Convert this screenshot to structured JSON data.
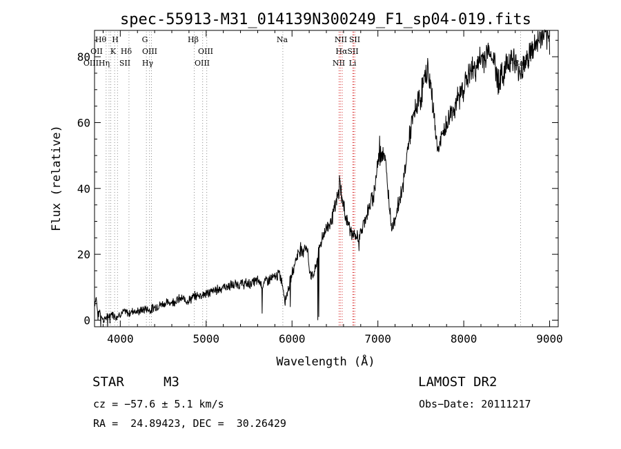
{
  "chart_data": {
    "type": "line",
    "title": "spec-55913-M31_014139N300249_F1_sp04-019.fits",
    "xlabel": "Wavelength (Å)",
    "ylabel": "Flux (relative)",
    "xlim": [
      3700,
      9100
    ],
    "ylim": [
      -2,
      88
    ],
    "xticks": [
      {
        "value": 4000,
        "label": "4000"
      },
      {
        "value": 5000,
        "label": "5000"
      },
      {
        "value": 6000,
        "label": "6000"
      },
      {
        "value": 7000,
        "label": "7000"
      },
      {
        "value": 8000,
        "label": "8000"
      },
      {
        "value": 9000,
        "label": "9000"
      }
    ],
    "yticks": [
      {
        "value": 0,
        "label": "0"
      },
      {
        "value": 20,
        "label": "20"
      },
      {
        "value": 40,
        "label": "40"
      },
      {
        "value": 60,
        "label": "60"
      },
      {
        "value": 80,
        "label": "80"
      }
    ],
    "spectrum_knots": [
      [
        3700,
        5
      ],
      [
        3720,
        7
      ],
      [
        3740,
        1
      ],
      [
        3760,
        3
      ],
      [
        3800,
        0
      ],
      [
        3850,
        1
      ],
      [
        3900,
        2
      ],
      [
        3950,
        1
      ],
      [
        4000,
        2
      ],
      [
        4050,
        2.5
      ],
      [
        4100,
        2
      ],
      [
        4150,
        3
      ],
      [
        4200,
        2.5
      ],
      [
        4250,
        3
      ],
      [
        4300,
        3.5
      ],
      [
        4350,
        3
      ],
      [
        4400,
        4
      ],
      [
        4500,
        5
      ],
      [
        4600,
        5.5
      ],
      [
        4700,
        6.5
      ],
      [
        4800,
        6
      ],
      [
        4850,
        7
      ],
      [
        4900,
        7.5
      ],
      [
        5000,
        8
      ],
      [
        5100,
        9
      ],
      [
        5200,
        10
      ],
      [
        5300,
        10.5
      ],
      [
        5400,
        11
      ],
      [
        5500,
        11
      ],
      [
        5600,
        12
      ],
      [
        5650,
        11
      ],
      [
        5700,
        12
      ],
      [
        5800,
        13
      ],
      [
        5850,
        14
      ],
      [
        5880,
        12
      ],
      [
        5920,
        6
      ],
      [
        5960,
        10
      ],
      [
        6000,
        14
      ],
      [
        6050,
        19
      ],
      [
        6100,
        22
      ],
      [
        6120,
        20
      ],
      [
        6150,
        23
      ],
      [
        6180,
        21
      ],
      [
        6200,
        16
      ],
      [
        6230,
        13
      ],
      [
        6270,
        15
      ],
      [
        6300,
        20
      ],
      [
        6350,
        25
      ],
      [
        6400,
        28
      ],
      [
        6450,
        30
      ],
      [
        6500,
        34
      ],
      [
        6540,
        38
      ],
      [
        6560,
        42
      ],
      [
        6580,
        37
      ],
      [
        6620,
        32
      ],
      [
        6660,
        29
      ],
      [
        6700,
        26
      ],
      [
        6750,
        25
      ],
      [
        6800,
        26
      ],
      [
        6850,
        31
      ],
      [
        6900,
        34
      ],
      [
        6950,
        38
      ],
      [
        7000,
        48
      ],
      [
        7050,
        52
      ],
      [
        7080,
        50
      ],
      [
        7100,
        44
      ],
      [
        7150,
        31
      ],
      [
        7180,
        29
      ],
      [
        7220,
        33
      ],
      [
        7300,
        42
      ],
      [
        7350,
        53
      ],
      [
        7400,
        60
      ],
      [
        7450,
        65
      ],
      [
        7500,
        68
      ],
      [
        7550,
        74
      ],
      [
        7580,
        76
      ],
      [
        7620,
        70
      ],
      [
        7660,
        61
      ],
      [
        7690,
        52
      ],
      [
        7720,
        53
      ],
      [
        7760,
        57
      ],
      [
        7800,
        59
      ],
      [
        7850,
        63
      ],
      [
        7900,
        65
      ],
      [
        7950,
        68
      ],
      [
        8000,
        71
      ],
      [
        8050,
        74
      ],
      [
        8100,
        76
      ],
      [
        8150,
        77
      ],
      [
        8200,
        79
      ],
      [
        8250,
        80
      ],
      [
        8300,
        82
      ],
      [
        8350,
        79
      ],
      [
        8400,
        73
      ],
      [
        8450,
        74
      ],
      [
        8500,
        78
      ],
      [
        8550,
        80
      ],
      [
        8600,
        78
      ],
      [
        8650,
        75
      ],
      [
        8700,
        78
      ],
      [
        8750,
        80
      ],
      [
        8800,
        82
      ],
      [
        8850,
        84
      ],
      [
        8900,
        86
      ],
      [
        8950,
        86
      ],
      [
        9000,
        84
      ]
    ],
    "spectrum_noise": 1.6,
    "spectrum_spikes": [
      [
        3770,
        -2
      ],
      [
        3850,
        -2
      ],
      [
        3880,
        -1
      ],
      [
        5650,
        2
      ],
      [
        5980,
        4
      ],
      [
        6300,
        0
      ],
      [
        6310,
        1
      ],
      [
        6260,
        15
      ],
      [
        6550,
        44
      ],
      [
        6780,
        21
      ],
      [
        7020,
        56
      ],
      [
        7160,
        27
      ]
    ],
    "line_markers": [
      {
        "wavelength": 3835,
        "labels": [
          "Hθ"
        ]
      },
      {
        "wavelength": 3869,
        "labels": [
          "OII"
        ]
      },
      {
        "wavelength": 3889,
        "labels": [
          "OIII",
          "Hη"
        ]
      },
      {
        "wavelength": 3934,
        "labels": [
          "K"
        ]
      },
      {
        "wavelength": 3968,
        "labels": [
          "H"
        ]
      },
      {
        "wavelength": 4101,
        "labels": [
          "Hδ",
          "SII"
        ]
      },
      {
        "wavelength": 4304,
        "labels": [
          "G"
        ]
      },
      {
        "wavelength": 4340,
        "labels": [
          "Hγ"
        ]
      },
      {
        "wavelength": 4363,
        "labels": [
          "OIII"
        ]
      },
      {
        "wavelength": 4861,
        "labels": [
          "Hβ"
        ]
      },
      {
        "wavelength": 4959,
        "labels": [
          "OIII"
        ]
      },
      {
        "wavelength": 5007,
        "labels": [
          "OIII"
        ]
      },
      {
        "wavelength": 5893,
        "labels": [
          "Na"
        ]
      },
      {
        "wavelength": 6548,
        "labels": [
          "NII"
        ]
      },
      {
        "wavelength": 6563,
        "labels": [
          "Hα"
        ]
      },
      {
        "wavelength": 6584,
        "labels": [
          "NII"
        ]
      },
      {
        "wavelength": 6708,
        "labels": [
          "Li"
        ]
      },
      {
        "wavelength": 6717,
        "labels": [
          "SII"
        ]
      },
      {
        "wavelength": 6731,
        "labels": [
          "SII"
        ]
      },
      {
        "wavelength": 8662,
        "labels": [
          "CaII"
        ]
      }
    ],
    "label_rows": [
      [
        "Hθ",
        "H",
        "G",
        "Hβ",
        "Na",
        "NII",
        "SII"
      ],
      [
        "OII",
        "K",
        "Hδ",
        "OIII",
        "OIII",
        "HαSII"
      ],
      [
        "OIIIHη",
        "SII",
        "Hγ",
        "OIII",
        "NII",
        "Li",
        "CaII"
      ]
    ],
    "grid": false,
    "colors": {
      "spectrum": "#000000",
      "emission_markers": "#d62020",
      "absorption_markers": "#8a8a8a"
    }
  },
  "info": {
    "object_class": "STAR",
    "subclass": "M3",
    "survey": "LAMOST DR2",
    "cz": "cz = −57.6 ± 5.1 km/s",
    "obs_date": "Obs−Date: 20111217",
    "coords": "RA =  24.89423, DEC =  30.26429"
  }
}
